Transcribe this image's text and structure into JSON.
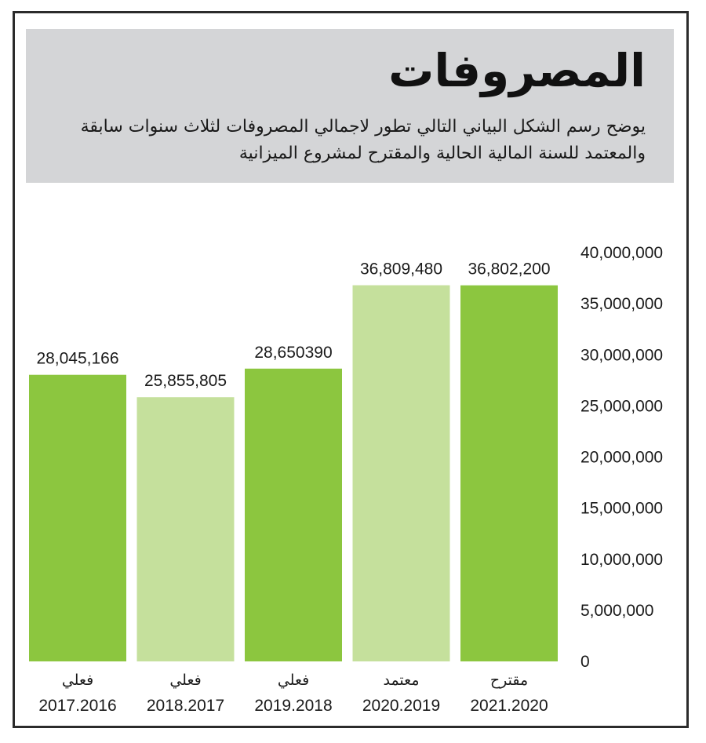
{
  "header": {
    "title": "المصروفات",
    "subtitle": "يوضح رسم الشكل البياني التالي تطور لاجمالي المصروفات لثلاث سنوات سابقة والمعتمد للسنة المالية الحالية والمقترح لمشروع الميزانية"
  },
  "colors": {
    "dark_green": "#8cc63f",
    "light_green": "#c5e09c",
    "header_bg": "#d4d5d7",
    "text": "#1a1a1a"
  },
  "chart_data": {
    "type": "bar",
    "title": "المصروفات",
    "ylim": [
      0,
      40000000
    ],
    "y_ticks": [
      0,
      5000000,
      10000000,
      15000000,
      20000000,
      25000000,
      30000000,
      35000000,
      40000000
    ],
    "y_tick_labels": [
      "0",
      "5,000,000",
      "10,000,000",
      "15,000,000",
      "20,000,000",
      "25,000,000",
      "30,000,000",
      "35,000,000",
      "40,000,000"
    ],
    "grid": false,
    "y_axis_side": "right",
    "bars": [
      {
        "type_label": "فعلي",
        "year_label": "2017.2016",
        "value": 28045166,
        "value_label": "28,045,166",
        "shade": "dark"
      },
      {
        "type_label": "فعلي",
        "year_label": "2018.2017",
        "value": 25855805,
        "value_label": "25,855,805",
        "shade": "light"
      },
      {
        "type_label": "فعلي",
        "year_label": "2019.2018",
        "value": 28650390,
        "value_label": "28,650390",
        "shade": "dark"
      },
      {
        "type_label": "معتمد",
        "year_label": "2020.2019",
        "value": 36809480,
        "value_label": "36,809,480",
        "shade": "light"
      },
      {
        "type_label": "مقترح",
        "year_label": "2021.2020",
        "value": 36802200,
        "value_label": "36,802,200",
        "shade": "dark"
      }
    ]
  }
}
